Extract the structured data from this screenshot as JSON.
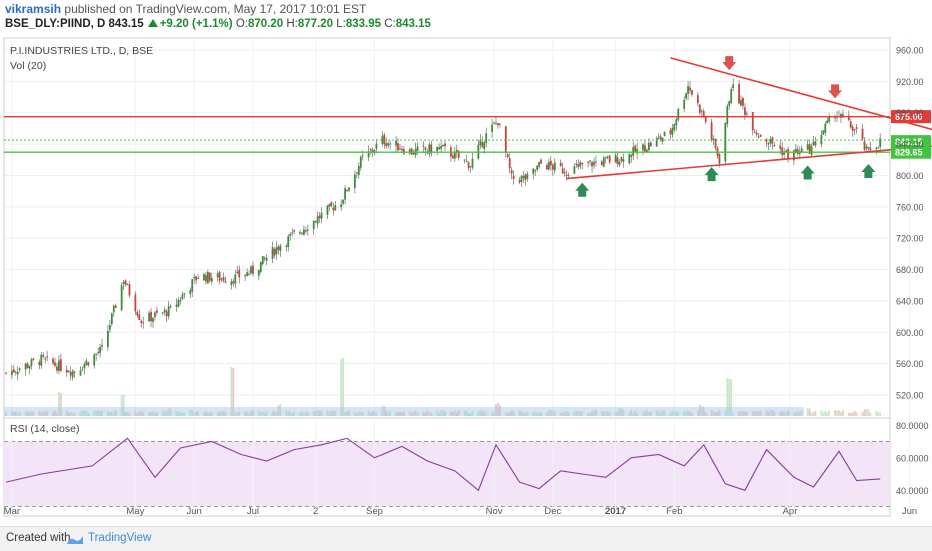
{
  "header": {
    "user": "vikramsih",
    "published": "published on TradingView.com, May 17, 2017 10:01 EST",
    "symbol": "BSE_DLY:PIIND, D",
    "last": "843.15",
    "change": "+9.20 (+1.1%)",
    "open_label": "O:",
    "open": "870.20",
    "high_label": "H:",
    "high": "877.20",
    "low_label": "L:",
    "low": "833.95",
    "close_label": "C:",
    "close": "843.15"
  },
  "chart_data": [
    {
      "type": "candlestick",
      "title": "P.I.INDUSTRIES LTD., D, BSE",
      "study_label": "Vol (20)",
      "y_ticks": [
        "960.00",
        "920.00",
        "880.00",
        "840.00",
        "800.00",
        "760.00",
        "720.00",
        "680.00",
        "640.00",
        "600.00",
        "560.00",
        "520.00"
      ],
      "ylim": [
        505,
        968
      ],
      "x_ticks": [
        "Mar",
        "May",
        "Jun",
        "Jul",
        "2",
        "Sep",
        "Nov",
        "Dec",
        "2017",
        "Feb",
        "Apr",
        "Jun"
      ],
      "price_labels": [
        {
          "text": "875.00",
          "value": 875,
          "color": "#e53935"
        },
        {
          "text": "843.15",
          "value": 843.15,
          "color": "#43c43f"
        },
        {
          "text": "829.65",
          "value": 829.65,
          "color": "#43c43f"
        }
      ],
      "horizontal_lines": [
        {
          "value": 875,
          "color": "#e53935"
        },
        {
          "value": 845,
          "color": "#43c43f",
          "dotted": true
        },
        {
          "value": 829.65,
          "color": "#43c43f"
        }
      ],
      "trendlines": [
        {
          "from": [
            "2017-01-30",
            950
          ],
          "to": [
            "2017-06-15",
            857
          ],
          "color": "#e53935"
        },
        {
          "from": [
            "2016-12-08",
            796
          ],
          "to": [
            "2017-06-15",
            838
          ],
          "color": "#e53935"
        }
      ],
      "markers": [
        {
          "type": "down-arrow",
          "date": "2017-03-01",
          "value": 942,
          "color": "#d9534f"
        },
        {
          "type": "down-arrow",
          "date": "2017-04-24",
          "value": 906,
          "color": "#d9534f"
        },
        {
          "type": "up-arrow",
          "date": "2016-12-16",
          "value": 783,
          "color": "#2e8b57"
        },
        {
          "type": "up-arrow",
          "date": "2017-02-20",
          "value": 803,
          "color": "#2e8b57"
        },
        {
          "type": "up-arrow",
          "date": "2017-04-10",
          "value": 805,
          "color": "#2e8b57"
        },
        {
          "type": "up-arrow",
          "date": "2017-05-11",
          "value": 807,
          "color": "#2e8b57"
        }
      ],
      "close_series": {
        "dates": [
          "2016-02-26",
          "2016-03-15",
          "2016-04-01",
          "2016-04-15",
          "2016-04-26",
          "2016-05-05",
          "2016-05-20",
          "2016-06-03",
          "2016-06-20",
          "2016-07-01",
          "2016-07-15",
          "2016-08-01",
          "2016-08-15",
          "2016-08-25",
          "2016-09-05",
          "2016-09-20",
          "2016-10-05",
          "2016-10-20",
          "2016-10-27",
          "2016-11-03",
          "2016-11-10",
          "2016-11-18",
          "2016-11-25",
          "2016-12-08",
          "2016-12-20",
          "2017-01-05",
          "2017-01-20",
          "2017-01-30",
          "2017-02-08",
          "2017-02-16",
          "2017-02-24",
          "2017-03-02",
          "2017-03-15",
          "2017-03-31",
          "2017-04-12",
          "2017-04-24",
          "2017-05-05",
          "2017-05-10",
          "2017-05-17"
        ],
        "values": [
          548,
          565,
          550,
          578,
          668,
          615,
          628,
          672,
          668,
          678,
          712,
          742,
          768,
          818,
          845,
          830,
          835,
          814,
          848,
          870,
          796,
          796,
          815,
          806,
          815,
          822,
          840,
          855,
          915,
          875,
          820,
          915,
          855,
          826,
          835,
          880,
          856,
          830,
          843.15
        ]
      },
      "volume_series": {
        "dates": [
          "2016-03-25",
          "2016-04-25",
          "2016-05-20",
          "2016-06-20",
          "2016-07-15",
          "2016-08-15",
          "2016-09-05",
          "2016-11-03",
          "2017-01-05",
          "2017-02-15",
          "2017-03-01",
          "2017-04-10",
          "2017-05-10"
        ],
        "values": [
          0.38,
          0.32,
          0.12,
          0.8,
          0.16,
          0.95,
          0.14,
          0.18,
          0.1,
          0.14,
          0.6,
          0.1,
          0.08
        ]
      }
    },
    {
      "type": "line",
      "title": "RSI (14, close)",
      "y_ticks": [
        "80.0000",
        "60.0000",
        "40.0000"
      ],
      "ylim": [
        26,
        82
      ],
      "band": [
        30,
        70
      ],
      "color": "#8a3c9a",
      "x": [
        "2016-02-26",
        "2016-03-15",
        "2016-04-10",
        "2016-04-28",
        "2016-05-12",
        "2016-05-25",
        "2016-06-10",
        "2016-06-25",
        "2016-07-08",
        "2016-07-22",
        "2016-08-05",
        "2016-08-18",
        "2016-09-01",
        "2016-09-15",
        "2016-09-28",
        "2016-10-12",
        "2016-10-24",
        "2016-11-02",
        "2016-11-14",
        "2016-11-24",
        "2016-12-05",
        "2016-12-16",
        "2016-12-28",
        "2017-01-10",
        "2017-01-24",
        "2017-02-06",
        "2017-02-16",
        "2017-02-27",
        "2017-03-09",
        "2017-03-20",
        "2017-04-03",
        "2017-04-13",
        "2017-04-26",
        "2017-05-05",
        "2017-05-17"
      ],
      "values": [
        45,
        50,
        55,
        72,
        48,
        66,
        70,
        62,
        58,
        65,
        68,
        72,
        60,
        67,
        58,
        52,
        40,
        68,
        45,
        41,
        52,
        50,
        48,
        60,
        62,
        55,
        68,
        44,
        40,
        65,
        48,
        42,
        64,
        46,
        47
      ]
    }
  ],
  "footer": {
    "created_with": "Created with",
    "brand": "TradingView"
  }
}
